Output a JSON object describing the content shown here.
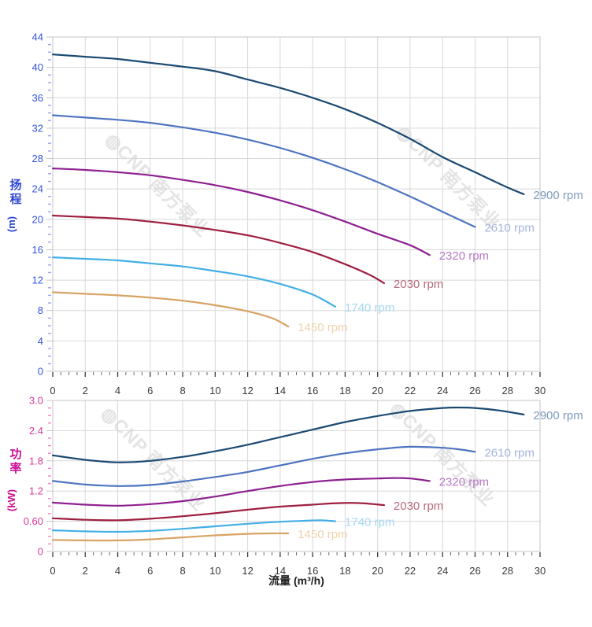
{
  "watermark": {
    "logo_glyph": "◍",
    "text": "CNP 南方泵业",
    "color": "#e4e4e4"
  },
  "chart_data": [
    {
      "id": "head-curve-chart",
      "type": "line",
      "title": "",
      "legend_position": "line-end",
      "grid": true,
      "x_axis": {
        "min": 0,
        "max": 30,
        "major": 2,
        "minor": 0.5,
        "tick_labels": [
          "0",
          "2",
          "4",
          "6",
          "8",
          "10",
          "12",
          "14",
          "16",
          "18",
          "20",
          "22",
          "24",
          "26",
          "28",
          "30"
        ],
        "label_color": "#3a3a3a",
        "title": "",
        "title_color": "#1f1f1f"
      },
      "y_axis": {
        "min": 0,
        "max": 44,
        "major": 4,
        "minor": 1,
        "tick_labels": [
          "0",
          "4",
          "8",
          "12",
          "16",
          "20",
          "24",
          "28",
          "32",
          "36",
          "40",
          "44"
        ],
        "title": "扬程",
        "unit": "(m)",
        "color": "#3553dd",
        "title_color": "#2b44d4",
        "minor_tick_color": "#93a6ec"
      },
      "series": [
        {
          "name": "2900 rpm",
          "color": "#1c4a72",
          "label_color": "#7d9cbe",
          "points": [
            [
              0,
              41.7
            ],
            [
              2,
              41.4
            ],
            [
              4,
              41.1
            ],
            [
              6,
              40.6
            ],
            [
              8,
              40.1
            ],
            [
              10,
              39.5
            ],
            [
              12,
              38.4
            ],
            [
              14,
              37.3
            ],
            [
              16,
              36.0
            ],
            [
              18,
              34.5
            ],
            [
              20,
              32.7
            ],
            [
              22,
              30.6
            ],
            [
              24,
              28.2
            ],
            [
              26,
              26.2
            ],
            [
              28,
              24.2
            ],
            [
              29,
              23.3
            ]
          ]
        },
        {
          "name": "2610 rpm",
          "color": "#4e74c0",
          "label_color": "#a3b4dc",
          "points": [
            [
              0,
              33.7
            ],
            [
              2,
              33.4
            ],
            [
              4,
              33.1
            ],
            [
              6,
              32.7
            ],
            [
              8,
              32.1
            ],
            [
              10,
              31.4
            ],
            [
              12,
              30.5
            ],
            [
              14,
              29.4
            ],
            [
              16,
              28.1
            ],
            [
              18,
              26.6
            ],
            [
              20,
              24.9
            ],
            [
              22,
              23.0
            ],
            [
              24,
              21.0
            ],
            [
              26,
              19.0
            ]
          ]
        },
        {
          "name": "2320 rpm",
          "color": "#8e2090",
          "label_color": "#b878c6",
          "points": [
            [
              0,
              26.7
            ],
            [
              2,
              26.5
            ],
            [
              4,
              26.2
            ],
            [
              6,
              25.8
            ],
            [
              8,
              25.2
            ],
            [
              10,
              24.5
            ],
            [
              12,
              23.6
            ],
            [
              14,
              22.5
            ],
            [
              16,
              21.2
            ],
            [
              18,
              19.7
            ],
            [
              20,
              18.1
            ],
            [
              22,
              16.6
            ],
            [
              23.2,
              15.3
            ]
          ]
        },
        {
          "name": "2030 rpm",
          "color": "#9e2040",
          "label_color": "#b56a7e",
          "points": [
            [
              0,
              20.5
            ],
            [
              2,
              20.3
            ],
            [
              4,
              20.1
            ],
            [
              6,
              19.7
            ],
            [
              8,
              19.2
            ],
            [
              10,
              18.6
            ],
            [
              12,
              17.9
            ],
            [
              14,
              16.9
            ],
            [
              16,
              15.7
            ],
            [
              18,
              14.1
            ],
            [
              19.5,
              12.7
            ],
            [
              20.4,
              11.6
            ]
          ]
        },
        {
          "name": "1740 rpm",
          "color": "#42afe6",
          "label_color": "#a6d8f2",
          "points": [
            [
              0,
              15.0
            ],
            [
              2,
              14.8
            ],
            [
              4,
              14.6
            ],
            [
              6,
              14.2
            ],
            [
              8,
              13.8
            ],
            [
              10,
              13.2
            ],
            [
              12,
              12.5
            ],
            [
              14,
              11.5
            ],
            [
              16,
              10.1
            ],
            [
              17.4,
              8.5
            ]
          ]
        },
        {
          "name": "1450 rpm",
          "color": "#d8a364",
          "label_color": "#eed3a9",
          "points": [
            [
              0,
              10.4
            ],
            [
              2,
              10.2
            ],
            [
              4,
              10.0
            ],
            [
              6,
              9.7
            ],
            [
              8,
              9.3
            ],
            [
              10,
              8.7
            ],
            [
              12,
              7.9
            ],
            [
              13.5,
              7.0
            ],
            [
              14.5,
              5.9
            ]
          ]
        }
      ]
    },
    {
      "id": "power-curve-chart",
      "type": "line",
      "title": "",
      "legend_position": "line-end",
      "grid": true,
      "x_axis": {
        "min": 0,
        "max": 30,
        "major": 2,
        "minor": 0.5,
        "tick_labels": [
          "0",
          "2",
          "4",
          "6",
          "8",
          "10",
          "12",
          "14",
          "16",
          "18",
          "20",
          "22",
          "24",
          "26",
          "28",
          "30"
        ],
        "label_color": "#3a3a3a",
        "title": "流量 (m³/h)",
        "title_color": "#1f1f1f"
      },
      "y_axis": {
        "min": 0,
        "max": 3.0,
        "major": 0.6,
        "minor": 0.15,
        "tick_labels": [
          "0",
          "0.60",
          "1.2",
          "1.8",
          "2.4",
          "3.0"
        ],
        "title": "功率",
        "unit": "(kW)",
        "color": "#d43a9b",
        "title_color": "#cb0f96",
        "minor_tick_color": "#ef83c8"
      },
      "series": [
        {
          "name": "2900 rpm",
          "color": "#1c4a72",
          "label_color": "#7d9cbe",
          "points": [
            [
              0,
              1.91
            ],
            [
              2,
              1.82
            ],
            [
              4,
              1.77
            ],
            [
              6,
              1.8
            ],
            [
              8,
              1.88
            ],
            [
              10,
              1.99
            ],
            [
              12,
              2.12
            ],
            [
              14,
              2.27
            ],
            [
              16,
              2.42
            ],
            [
              18,
              2.57
            ],
            [
              20,
              2.69
            ],
            [
              22,
              2.79
            ],
            [
              24,
              2.85
            ],
            [
              25,
              2.86
            ],
            [
              26,
              2.85
            ],
            [
              27.5,
              2.8
            ],
            [
              29,
              2.72
            ]
          ]
        },
        {
          "name": "2610 rpm",
          "color": "#4e74c0",
          "label_color": "#a3b4dc",
          "points": [
            [
              0,
              1.4
            ],
            [
              2,
              1.33
            ],
            [
              4,
              1.3
            ],
            [
              6,
              1.32
            ],
            [
              8,
              1.39
            ],
            [
              10,
              1.48
            ],
            [
              12,
              1.58
            ],
            [
              14,
              1.71
            ],
            [
              16,
              1.84
            ],
            [
              18,
              1.95
            ],
            [
              20,
              2.03
            ],
            [
              22,
              2.08
            ],
            [
              24,
              2.06
            ],
            [
              25,
              2.03
            ],
            [
              26,
              1.98
            ]
          ]
        },
        {
          "name": "2320 rpm",
          "color": "#8e2090",
          "label_color": "#b878c6",
          "points": [
            [
              0,
              0.97
            ],
            [
              2,
              0.93
            ],
            [
              4,
              0.91
            ],
            [
              6,
              0.94
            ],
            [
              8,
              1.0
            ],
            [
              10,
              1.09
            ],
            [
              12,
              1.2
            ],
            [
              14,
              1.3
            ],
            [
              16,
              1.38
            ],
            [
              18,
              1.43
            ],
            [
              20,
              1.45
            ],
            [
              21,
              1.46
            ],
            [
              22,
              1.45
            ],
            [
              23.2,
              1.4
            ]
          ]
        },
        {
          "name": "2030 rpm",
          "color": "#9e2040",
          "label_color": "#b56a7e",
          "points": [
            [
              0,
              0.66
            ],
            [
              2,
              0.63
            ],
            [
              4,
              0.62
            ],
            [
              6,
              0.65
            ],
            [
              8,
              0.7
            ],
            [
              10,
              0.76
            ],
            [
              12,
              0.83
            ],
            [
              14,
              0.89
            ],
            [
              16,
              0.93
            ],
            [
              17.5,
              0.96
            ],
            [
              19,
              0.96
            ],
            [
              20.4,
              0.92
            ]
          ]
        },
        {
          "name": "1740 rpm",
          "color": "#42afe6",
          "label_color": "#a6d8f2",
          "points": [
            [
              0,
              0.42
            ],
            [
              2,
              0.4
            ],
            [
              4,
              0.39
            ],
            [
              6,
              0.41
            ],
            [
              8,
              0.45
            ],
            [
              10,
              0.5
            ],
            [
              12,
              0.55
            ],
            [
              14,
              0.59
            ],
            [
              15.5,
              0.61
            ],
            [
              16.5,
              0.62
            ],
            [
              17.4,
              0.6
            ]
          ]
        },
        {
          "name": "1450 rpm",
          "color": "#d8a364",
          "label_color": "#eed3a9",
          "points": [
            [
              0,
              0.23
            ],
            [
              2,
              0.22
            ],
            [
              4,
              0.22
            ],
            [
              6,
              0.24
            ],
            [
              8,
              0.28
            ],
            [
              10,
              0.32
            ],
            [
              12,
              0.35
            ],
            [
              13.5,
              0.36
            ],
            [
              14.5,
              0.36
            ]
          ]
        }
      ]
    }
  ]
}
